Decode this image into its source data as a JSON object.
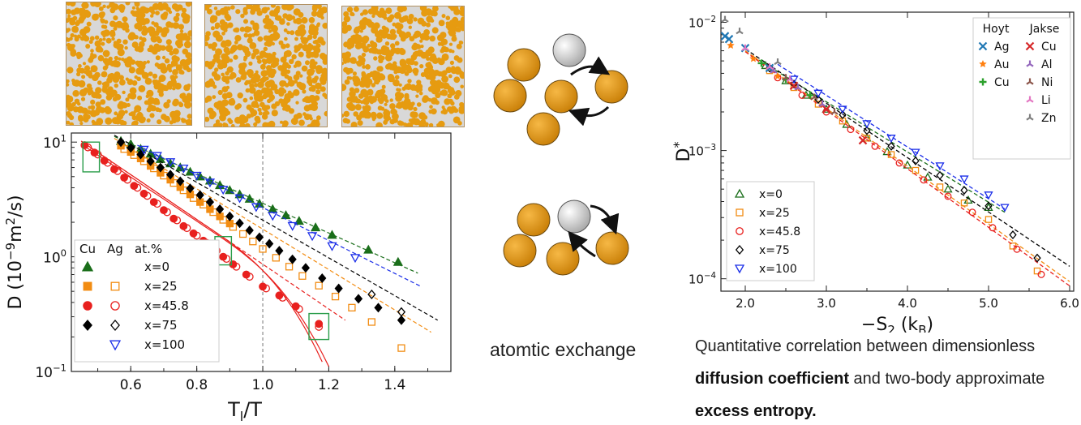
{
  "middle": {
    "exchange_label": "atomtic exchange"
  },
  "caption": {
    "line1": "Quantitative correlation between dimensionless",
    "line2_bold": "diffusion coefficient",
    "line2_rest": " and two-body approximate",
    "line3_bold": "excess entropy."
  },
  "colors": {
    "gold": "#e69b10",
    "silver": "#d8d8d8",
    "x0": "#1a6e1a",
    "x25": "#f28c12",
    "x45": "#e8201e",
    "x75": "#000000",
    "x100": "#1a2de8",
    "box": "#2a9d4a"
  },
  "chart_data": [
    {
      "id": "left",
      "type": "scatter",
      "xlabel": "T_l/T",
      "ylabel": "D (10^-9 m^2/s)",
      "xlim": [
        0.42,
        1.57
      ],
      "ylim": [
        0.1,
        12
      ],
      "yscale": "log",
      "xticks": [
        "0.6",
        "0.8",
        "1.0",
        "1.2",
        "1.4"
      ],
      "xtick_values": [
        0.6,
        0.8,
        1.0,
        1.2,
        1.4
      ],
      "yticks": [
        {
          "value": 10,
          "base": "10",
          "exp": "1"
        },
        {
          "value": 1,
          "base": "10",
          "exp": "0"
        },
        {
          "value": 0.1,
          "base": "10",
          "exp": "−1"
        }
      ],
      "vline": 1.0,
      "legend_header": {
        "a": "Cu",
        "b": "Ag",
        "c": "at.%"
      },
      "series": [
        {
          "name": "x=0",
          "color": "#1a6e1a",
          "key": "x0",
          "filled": {
            "marker": "triangle",
            "x": [
              0.57,
              0.6,
              0.63,
              0.66,
              0.69,
              0.72,
              0.75,
              0.78,
              0.81,
              0.84,
              0.87,
              0.9,
              0.93,
              0.96,
              0.99,
              1.03,
              1.07,
              1.11,
              1.16,
              1.21,
              1.32,
              1.41
            ],
            "y": [
              10.2,
              9.6,
              8.7,
              7.9,
              7.1,
              6.5,
              6.0,
              5.5,
              5.0,
              4.6,
              4.2,
              3.8,
              3.5,
              3.2,
              2.9,
              2.6,
              2.3,
              2.05,
              1.8,
              1.55,
              1.15,
              0.9
            ]
          },
          "fit": {
            "x": [
              0.55,
              1.47
            ],
            "y": [
              11.2,
              0.72
            ]
          }
        },
        {
          "name": "x=25",
          "color": "#f28c12",
          "key": "x25",
          "filled": {
            "marker": "square",
            "x": [
              0.57,
              0.6,
              0.63,
              0.66,
              0.69,
              0.72,
              0.75,
              0.78,
              0.81,
              0.84,
              0.87,
              0.9
            ],
            "y": [
              9.3,
              8.2,
              7.2,
              6.2,
              5.4,
              4.7,
              4.05,
              3.5,
              3.0,
              2.6,
              2.25,
              1.95
            ]
          },
          "open": {
            "marker": "square",
            "x": [
              0.58,
              0.61,
              0.64,
              0.67,
              0.7,
              0.73,
              0.76,
              0.79,
              0.82,
              0.85,
              0.88,
              0.91,
              0.94,
              0.97,
              1.0,
              1.04,
              1.08,
              1.12,
              1.17,
              1.22,
              1.27,
              1.33,
              1.42
            ],
            "y": [
              8.7,
              7.7,
              6.8,
              5.9,
              5.1,
              4.4,
              3.8,
              3.25,
              2.85,
              2.45,
              2.1,
              1.82,
              1.58,
              1.36,
              1.17,
              0.98,
              0.82,
              0.68,
              0.56,
              0.45,
              0.36,
              0.27,
              0.16
            ]
          },
          "fit": {
            "x": [
              0.55,
              1.51
            ],
            "y": [
              10.8,
              0.22
            ]
          }
        },
        {
          "name": "x=45.8",
          "color": "#e8201e",
          "key": "x45",
          "filled": {
            "marker": "circle",
            "x": [
              0.46,
              0.49,
              0.52,
              0.55,
              0.58,
              0.61,
              0.64,
              0.67,
              0.7,
              0.73,
              0.76,
              0.79,
              0.82,
              0.85,
              0.88,
              0.91,
              0.95,
              1.0,
              1.05,
              1.1,
              1.17
            ],
            "y": [
              9.4,
              8.1,
              6.9,
              5.8,
              4.9,
              4.15,
              3.55,
              3.0,
              2.55,
              2.15,
              1.85,
              1.6,
              1.38,
              1.18,
              1.0,
              0.86,
              0.7,
              0.55,
              0.46,
              0.37,
              0.26
            ]
          },
          "open": {
            "marker": "circle",
            "x": [
              0.47,
              0.5,
              0.53,
              0.56,
              0.59,
              0.62,
              0.65,
              0.68,
              0.71,
              0.74,
              0.77,
              0.8,
              0.83,
              0.86,
              0.89,
              0.92,
              0.96,
              1.01,
              1.06,
              1.11,
              1.17
            ],
            "y": [
              9.0,
              7.8,
              6.6,
              5.6,
              4.7,
              4.0,
              3.4,
              2.9,
              2.45,
              2.08,
              1.78,
              1.53,
              1.32,
              1.13,
              0.96,
              0.82,
              0.67,
              0.53,
              0.44,
              0.35,
              0.245
            ]
          },
          "fit": {
            "x": [
              0.45,
              1.25
            ],
            "y": [
              10.2,
              0.28
            ]
          }
        },
        {
          "name": "x=75",
          "color": "#000000",
          "key": "x75",
          "filled": {
            "marker": "diamond",
            "x": [
              0.57,
              0.6,
              0.63,
              0.66,
              0.69,
              0.72,
              0.75,
              0.78,
              0.81,
              0.84,
              0.87,
              0.9,
              0.93,
              0.96,
              0.99,
              1.02,
              1.05,
              1.09,
              1.13,
              1.18,
              1.23,
              1.29,
              1.35,
              1.42
            ],
            "y": [
              10.0,
              8.9,
              7.8,
              6.8,
              6.0,
              5.2,
              4.55,
              3.95,
              3.45,
              3.0,
              2.6,
              2.25,
              1.96,
              1.7,
              1.48,
              1.3,
              1.13,
              0.95,
              0.8,
              0.65,
              0.53,
              0.43,
              0.36,
              0.28
            ]
          },
          "open": {
            "marker": "diamond",
            "x": [
              1.33,
              1.42
            ],
            "y": [
              0.47,
              0.33
            ]
          },
          "fit": {
            "x": [
              0.55,
              1.53
            ],
            "y": [
              11.5,
              0.28
            ]
          }
        },
        {
          "name": "x=100",
          "color": "#1a2de8",
          "key": "x100",
          "open": {
            "marker": "tri_down",
            "x": [
              0.64,
              0.68,
              0.72,
              0.76,
              0.8,
              0.84,
              0.88,
              0.93,
              0.98,
              1.03,
              1.09,
              1.15,
              1.21,
              1.28
            ],
            "y": [
              8.6,
              7.6,
              6.7,
              5.9,
              5.1,
              4.45,
              3.85,
              3.25,
              2.72,
              2.28,
              1.86,
              1.52,
              1.24,
              0.98
            ]
          },
          "fit": {
            "x": [
              0.62,
              1.48
            ],
            "y": [
              9.4,
              0.55
            ]
          }
        }
      ],
      "red_curves": {
        "color": "#e8201e",
        "x_end": [
          1.18,
          1.2
        ],
        "y_end": [
          0.1,
          0.1
        ]
      },
      "highlight_boxes": [
        {
          "x": [
            0.455,
            0.505
          ],
          "y": [
            5.5,
            10
          ]
        },
        {
          "x": [
            0.855,
            0.905
          ],
          "y": [
            0.85,
            1.5
          ]
        },
        {
          "x": [
            1.14,
            1.2
          ],
          "y": [
            0.19,
            0.32
          ]
        }
      ]
    },
    {
      "id": "right",
      "type": "scatter",
      "xlabel": "−S2 (kB)",
      "ylabel": "D*",
      "xlim": [
        1.7,
        6.05
      ],
      "ylim": [
        8e-05,
        0.012
      ],
      "yscale": "log",
      "xticks": [
        "2.0",
        "3.0",
        "4.0",
        "5.0",
        "6.0"
      ],
      "xtick_values": [
        2.0,
        3.0,
        4.0,
        5.0,
        6.0
      ],
      "yticks": [
        {
          "value": 0.01,
          "base": "10",
          "exp": "−2"
        },
        {
          "value": 0.001,
          "base": "10",
          "exp": "−3"
        },
        {
          "value": 0.0001,
          "base": "10",
          "exp": "−4"
        }
      ],
      "legend_top_headers": [
        "Hoyt",
        "Jakse"
      ],
      "legend_top_left": [
        {
          "label": "Ag",
          "color": "#1f77b4",
          "marker": "x"
        },
        {
          "label": "Au",
          "color": "#ff7f0e",
          "marker": "star"
        },
        {
          "label": "Cu",
          "color": "#2ca02c",
          "marker": "plus"
        }
      ],
      "legend_top_right": [
        {
          "label": "Cu",
          "color": "#d62728",
          "marker": "x"
        },
        {
          "label": "Al",
          "color": "#9467bd",
          "marker": "tri"
        },
        {
          "label": "Ni",
          "color": "#8c564b",
          "marker": "tri"
        },
        {
          "label": "Li",
          "color": "#e377c2",
          "marker": "tri"
        },
        {
          "label": "Zn",
          "color": "#7f7f7f",
          "marker": "tri"
        }
      ],
      "series": [
        {
          "name": "x=0",
          "color": "#1a6e1a",
          "key": "x0",
          "marker": "triangle",
          "x": [
            2.25,
            2.5,
            2.75,
            3.0,
            3.25,
            3.5,
            3.75,
            4.0,
            4.25,
            4.5,
            4.75,
            5.0
          ],
          "y": [
            0.0046,
            0.0035,
            0.0027,
            0.0021,
            0.0016,
            0.00125,
            0.00098,
            0.00077,
            0.00062,
            0.0005,
            0.00041,
            0.00036
          ],
          "fit": {
            "x": [
              2.1,
              5.2
            ],
            "y": [
              0.0054,
              0.00033
            ]
          }
        },
        {
          "name": "x=25",
          "color": "#f28c12",
          "key": "x25",
          "marker": "square",
          "x": [
            2.3,
            2.6,
            2.9,
            3.2,
            3.5,
            3.8,
            4.1,
            4.4,
            4.7,
            5.0,
            5.3,
            5.6
          ],
          "y": [
            0.0042,
            0.0031,
            0.0023,
            0.0017,
            0.00125,
            0.00093,
            0.0007,
            0.00052,
            0.00039,
            0.00029,
            0.00018,
            0.000115
          ],
          "fit": {
            "x": [
              2.0,
              6.0
            ],
            "y": [
              0.006,
              9.5e-05
            ]
          }
        },
        {
          "name": "x=45.8",
          "color": "#e8201e",
          "key": "x45",
          "marker": "circle",
          "x": [
            2.4,
            2.7,
            3.0,
            3.3,
            3.6,
            3.9,
            4.2,
            4.5,
            4.8,
            5.05,
            5.35,
            5.65
          ],
          "y": [
            0.0037,
            0.0027,
            0.002,
            0.00146,
            0.00108,
            0.0008,
            0.00059,
            0.00044,
            0.00033,
            0.00025,
            0.00017,
            0.000108
          ],
          "fit": {
            "x": [
              2.0,
              6.0
            ],
            "y": [
              0.0059,
              8.8e-05
            ]
          }
        },
        {
          "name": "x=75",
          "color": "#000000",
          "key": "x75",
          "marker": "diamond",
          "x": [
            2.3,
            2.6,
            2.9,
            3.2,
            3.5,
            3.8,
            4.1,
            4.4,
            4.7,
            5.0,
            5.3,
            5.6
          ],
          "y": [
            0.0044,
            0.0033,
            0.0025,
            0.0019,
            0.00143,
            0.00108,
            0.00083,
            0.00064,
            0.00049,
            0.00037,
            0.00022,
            0.000145
          ],
          "fit": {
            "x": [
              2.0,
              6.0
            ],
            "y": [
              0.0062,
              0.000125
            ]
          }
        },
        {
          "name": "x=100",
          "color": "#1a2de8",
          "key": "x100",
          "marker": "tri_down",
          "x": [
            2.6,
            2.9,
            3.2,
            3.5,
            3.8,
            4.1,
            4.4,
            4.7,
            5.0,
            5.2
          ],
          "y": [
            0.0036,
            0.0028,
            0.0021,
            0.00162,
            0.00125,
            0.00097,
            0.00076,
            0.0006,
            0.00045,
            0.00036
          ],
          "fit": {
            "x": [
              2.4,
              5.2
            ],
            "y": [
              0.0047,
              0.00035
            ]
          }
        }
      ],
      "extra_points": [
        {
          "color": "#1f77b4",
          "marker": "x",
          "x": [
            1.75,
            1.8,
            2.0,
            2.3
          ],
          "y": [
            0.0078,
            0.0074,
            0.0063,
            0.0044
          ]
        },
        {
          "color": "#ff7f0e",
          "marker": "star",
          "x": [
            1.82,
            2.1,
            2.4
          ],
          "y": [
            0.0066,
            0.0052,
            0.0038
          ]
        },
        {
          "color": "#2ca02c",
          "marker": "plus",
          "x": [
            2.2,
            2.5,
            2.8
          ],
          "y": [
            0.0048,
            0.0036,
            0.0027
          ]
        },
        {
          "color": "#d62728",
          "marker": "x",
          "x": [
            2.6,
            3.0,
            3.45
          ],
          "y": [
            0.0032,
            0.0021,
            0.0012
          ]
        },
        {
          "color": "#9467bd",
          "marker": "tri",
          "x": [
            2.35,
            2.65,
            2.95
          ],
          "y": [
            0.0042,
            0.0031,
            0.0023
          ]
        },
        {
          "color": "#8c564b",
          "marker": "tri",
          "x": [
            2.5,
            2.85,
            3.1
          ],
          "y": [
            0.0037,
            0.0026,
            0.002
          ]
        },
        {
          "color": "#e377c2",
          "marker": "tri",
          "x": [
            2.0,
            2.3,
            2.55
          ],
          "y": [
            0.0063,
            0.0045,
            0.0036
          ]
        },
        {
          "color": "#7f7f7f",
          "marker": "tri",
          "x": [
            1.75,
            1.93,
            2.4
          ],
          "y": [
            0.0105,
            0.0085,
            0.0049
          ]
        }
      ]
    }
  ]
}
